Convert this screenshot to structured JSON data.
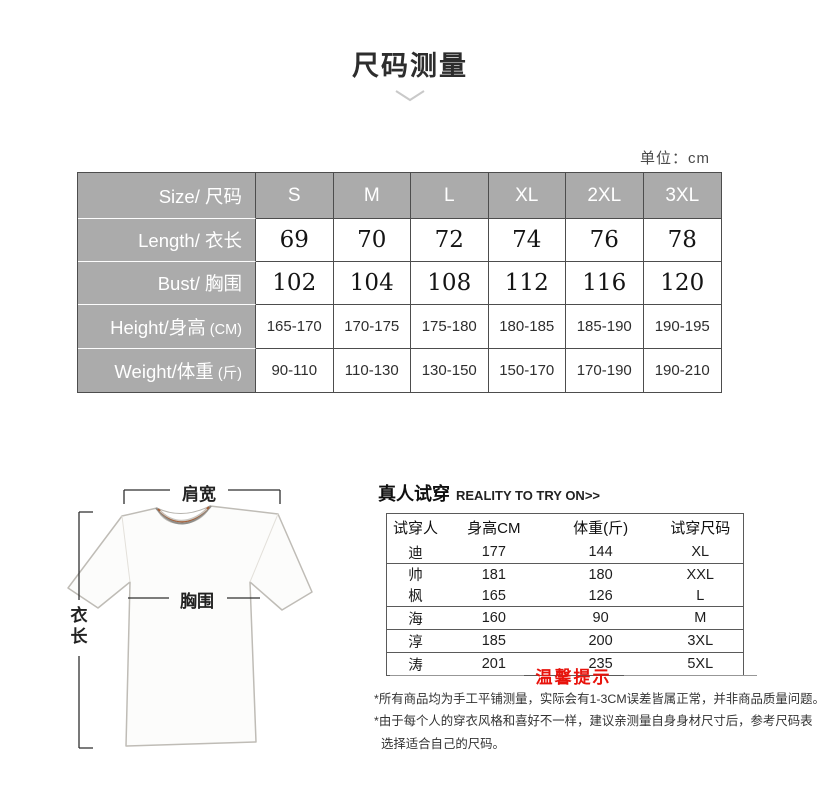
{
  "colors": {
    "accent_red": "#e8130c",
    "table_header_gray": "#ababab",
    "table_border": "#4d4d4d"
  },
  "header": {
    "title": "尺码测量",
    "unit_label": "单位：",
    "unit_value": "cm"
  },
  "size_table": {
    "corner_label": "Size/ 尺码",
    "columns": [
      "S",
      "M",
      "L",
      "XL",
      "2XL",
      "3XL"
    ],
    "rows": [
      {
        "label": "Length/ 衣长",
        "suffix": "",
        "style": "big",
        "values": [
          "69",
          "70",
          "72",
          "74",
          "76",
          "78"
        ]
      },
      {
        "label": "Bust/ 胸围",
        "suffix": "",
        "style": "big",
        "values": [
          "102",
          "104",
          "108",
          "112",
          "116",
          "120"
        ]
      },
      {
        "label": "Height/身高",
        "suffix": "(CM)",
        "style": "small",
        "values": [
          "165-170",
          "170-175",
          "175-180",
          "180-185",
          "185-190",
          "190-195"
        ]
      },
      {
        "label": "Weight/体重",
        "suffix": "(斤)",
        "style": "small",
        "values": [
          "90-110",
          "110-130",
          "130-150",
          "150-170",
          "170-190",
          "190-210"
        ]
      }
    ]
  },
  "diagram": {
    "shoulder_label": "肩宽",
    "bust_label": "胸围",
    "length_label": "衣长"
  },
  "fitting": {
    "title_zh": "真人试穿",
    "title_en": "REALITY TO TRY ON>>",
    "columns": [
      "试穿人",
      "身高CM",
      "体重(斤)",
      "试穿尺码"
    ],
    "groups": [
      {
        "rows": [
          [
            "迪",
            "177",
            "144",
            "XL"
          ]
        ]
      },
      {
        "rows": [
          [
            "帅",
            "181",
            "180",
            "XXL"
          ],
          [
            "枫",
            "165",
            "126",
            "L"
          ]
        ]
      },
      {
        "rows": [
          [
            "海",
            "160",
            "90",
            "M"
          ]
        ]
      },
      {
        "rows": [
          [
            "淳",
            "185",
            "200",
            "3XL"
          ]
        ]
      },
      {
        "rows": [
          [
            "涛",
            "201",
            "235",
            "5XL"
          ]
        ]
      }
    ]
  },
  "tips": {
    "title": "温馨提示",
    "notes": [
      "*所有商品均为手工平铺测量，实际会有1-3CM误差皆属正常，并非商品质量问题。",
      "*由于每个人的穿衣风格和喜好不一样，建议亲测量自身身材尺寸后，参考尺码表",
      "选择适合自己的尺码。"
    ]
  }
}
